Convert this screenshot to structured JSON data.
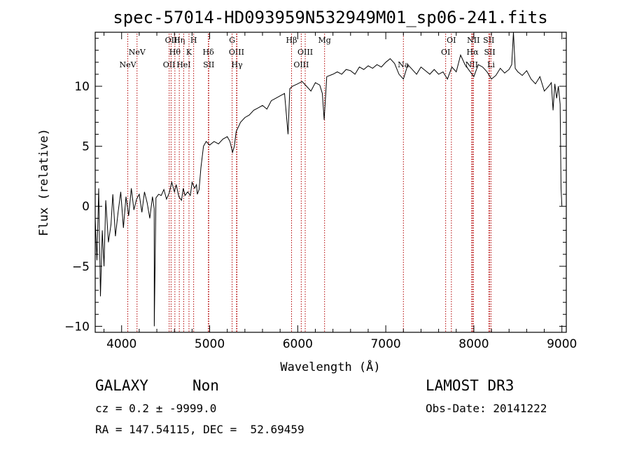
{
  "chart_data": {
    "type": "line",
    "title": "spec-57014-HD093959N532949M01_sp06-241.fits",
    "xlabel": "Wavelength (Å)",
    "ylabel": "Flux (relative)",
    "xlim": [
      3700,
      9050
    ],
    "ylim": [
      -10.5,
      14.5
    ],
    "xticks": [
      4000,
      5000,
      6000,
      7000,
      8000,
      9000
    ],
    "yticks": [
      -10,
      -5,
      0,
      5,
      10
    ],
    "grid": false,
    "series": [
      {
        "color": "#000000",
        "x": [
          3700,
          3720,
          3740,
          3760,
          3780,
          3800,
          3820,
          3850,
          3880,
          3900,
          3930,
          3960,
          3990,
          4020,
          4050,
          4080,
          4110,
          4140,
          4170,
          4200,
          4230,
          4260,
          4290,
          4320,
          4350,
          4370,
          4371,
          4390,
          4420,
          4450,
          4480,
          4510,
          4540,
          4570,
          4600,
          4620,
          4650,
          4680,
          4700,
          4720,
          4750,
          4780,
          4800,
          4830,
          4850,
          4860,
          4880,
          4900,
          4930,
          4960,
          5000,
          5050,
          5100,
          5150,
          5200,
          5230,
          5260,
          5280,
          5300,
          5350,
          5400,
          5450,
          5500,
          5550,
          5600,
          5650,
          5700,
          5750,
          5800,
          5850,
          5890,
          5910,
          5940,
          6000,
          6050,
          6100,
          6150,
          6200,
          6250,
          6280,
          6300,
          6330,
          6400,
          6450,
          6500,
          6550,
          6600,
          6650,
          6700,
          6750,
          6800,
          6850,
          6900,
          6950,
          7000,
          7050,
          7100,
          7150,
          7200,
          7250,
          7300,
          7350,
          7400,
          7450,
          7500,
          7550,
          7600,
          7650,
          7700,
          7750,
          7800,
          7850,
          7900,
          7950,
          8000,
          8050,
          8100,
          8150,
          8200,
          8250,
          8300,
          8350,
          8400,
          8430,
          8450,
          8470,
          8500,
          8550,
          8600,
          8650,
          8700,
          8750,
          8800,
          8850,
          8880,
          8900,
          8920,
          8940,
          8960,
          8980,
          8990,
          9000
        ],
        "y": [
          -1.0,
          -4.5,
          1.5,
          -7.5,
          -2.0,
          -5.0,
          0.5,
          -3.0,
          -1.5,
          1.0,
          -2.5,
          -0.5,
          1.2,
          -1.8,
          0.8,
          -0.8,
          1.5,
          -0.3,
          0.6,
          1.0,
          -0.5,
          1.2,
          0.3,
          -1.0,
          0.8,
          -0.2,
          -10.0,
          0.7,
          1.0,
          0.9,
          1.4,
          0.6,
          1.1,
          2.0,
          1.2,
          1.8,
          0.8,
          0.5,
          1.5,
          0.9,
          1.2,
          0.9,
          2.0,
          1.5,
          1.8,
          1.0,
          1.4,
          3.2,
          5.0,
          5.4,
          5.1,
          5.4,
          5.2,
          5.6,
          5.8,
          5.4,
          4.5,
          5.0,
          6.2,
          7.0,
          7.4,
          7.6,
          8.0,
          8.2,
          8.4,
          8.1,
          8.8,
          9.0,
          9.2,
          9.4,
          6.0,
          9.8,
          10.0,
          10.2,
          10.4,
          10.0,
          9.6,
          10.3,
          10.1,
          9.4,
          7.2,
          10.8,
          11.0,
          11.2,
          11.0,
          11.4,
          11.3,
          11.0,
          11.6,
          11.4,
          11.7,
          11.5,
          11.8,
          11.6,
          12.0,
          12.3,
          11.9,
          11.0,
          10.6,
          11.8,
          11.4,
          11.0,
          11.6,
          11.3,
          11.0,
          11.4,
          11.0,
          11.2,
          10.6,
          11.6,
          11.2,
          12.6,
          11.8,
          11.3,
          10.8,
          11.8,
          11.6,
          11.2,
          10.6,
          10.9,
          11.5,
          11.1,
          11.4,
          11.8,
          14.5,
          11.5,
          11.2,
          10.9,
          11.3,
          10.6,
          10.2,
          10.8,
          9.6,
          10.0,
          10.3,
          8.0,
          10.2,
          9.0,
          10.0,
          8.5,
          1.5,
          0.0
        ]
      }
    ],
    "line_markers": [
      {
        "x": 4070,
        "label": "NeV",
        "row": 2
      },
      {
        "x": 4175,
        "label": "NeV",
        "row": 1
      },
      {
        "x": 4540,
        "label": "OII",
        "row": 2
      },
      {
        "x": 4562,
        "label": "OII",
        "row": 0
      },
      {
        "x": 4605,
        "label": "Hθ",
        "row": 1
      },
      {
        "x": 4655,
        "label": "Hη",
        "row": 0
      },
      {
        "x": 4705,
        "label": "HeI",
        "row": 2
      },
      {
        "x": 4765,
        "label": "K",
        "row": 1
      },
      {
        "x": 4818,
        "label": "H",
        "row": 0
      },
      {
        "x": 4985,
        "label": "Hδ",
        "row": 1
      },
      {
        "x": 4990,
        "label": "SII",
        "row": 2
      },
      {
        "x": 5255,
        "label": "G",
        "row": 0
      },
      {
        "x": 5305,
        "label": "OIII",
        "row": 1
      },
      {
        "x": 5310,
        "label": "Hγ",
        "row": 2
      },
      {
        "x": 5930,
        "label": "Hβ",
        "row": 0
      },
      {
        "x": 6040,
        "label": "OIII",
        "row": 2
      },
      {
        "x": 6085,
        "label": "OIII",
        "row": 1
      },
      {
        "x": 6305,
        "label": "Mg",
        "row": 0
      },
      {
        "x": 7200,
        "label": "Na",
        "row": 2
      },
      {
        "x": 7680,
        "label": "OI",
        "row": 1
      },
      {
        "x": 7745,
        "label": "OI",
        "row": 0
      },
      {
        "x": 7975,
        "label": "NII",
        "row": 2
      },
      {
        "x": 7985,
        "label": "Hα",
        "row": 1
      },
      {
        "x": 7995,
        "label": "NII",
        "row": 0
      },
      {
        "x": 8170,
        "label": "SII",
        "row": 0
      },
      {
        "x": 8180,
        "label": "SII",
        "row": 1
      },
      {
        "x": 8195,
        "label": "Li",
        "row": 2
      }
    ]
  },
  "info": {
    "object_class": "GALAXY",
    "subclass": "Non",
    "survey": "LAMOST DR3",
    "cz": "cz = 0.2 ± -9999.0",
    "obs_date": "Obs-Date: 20141222",
    "radec": "RA = 147.54115, DEC =  52.69459"
  },
  "colors": {
    "spectrum": "#000000",
    "line_marker": "#b30000",
    "axes": "#000000"
  }
}
